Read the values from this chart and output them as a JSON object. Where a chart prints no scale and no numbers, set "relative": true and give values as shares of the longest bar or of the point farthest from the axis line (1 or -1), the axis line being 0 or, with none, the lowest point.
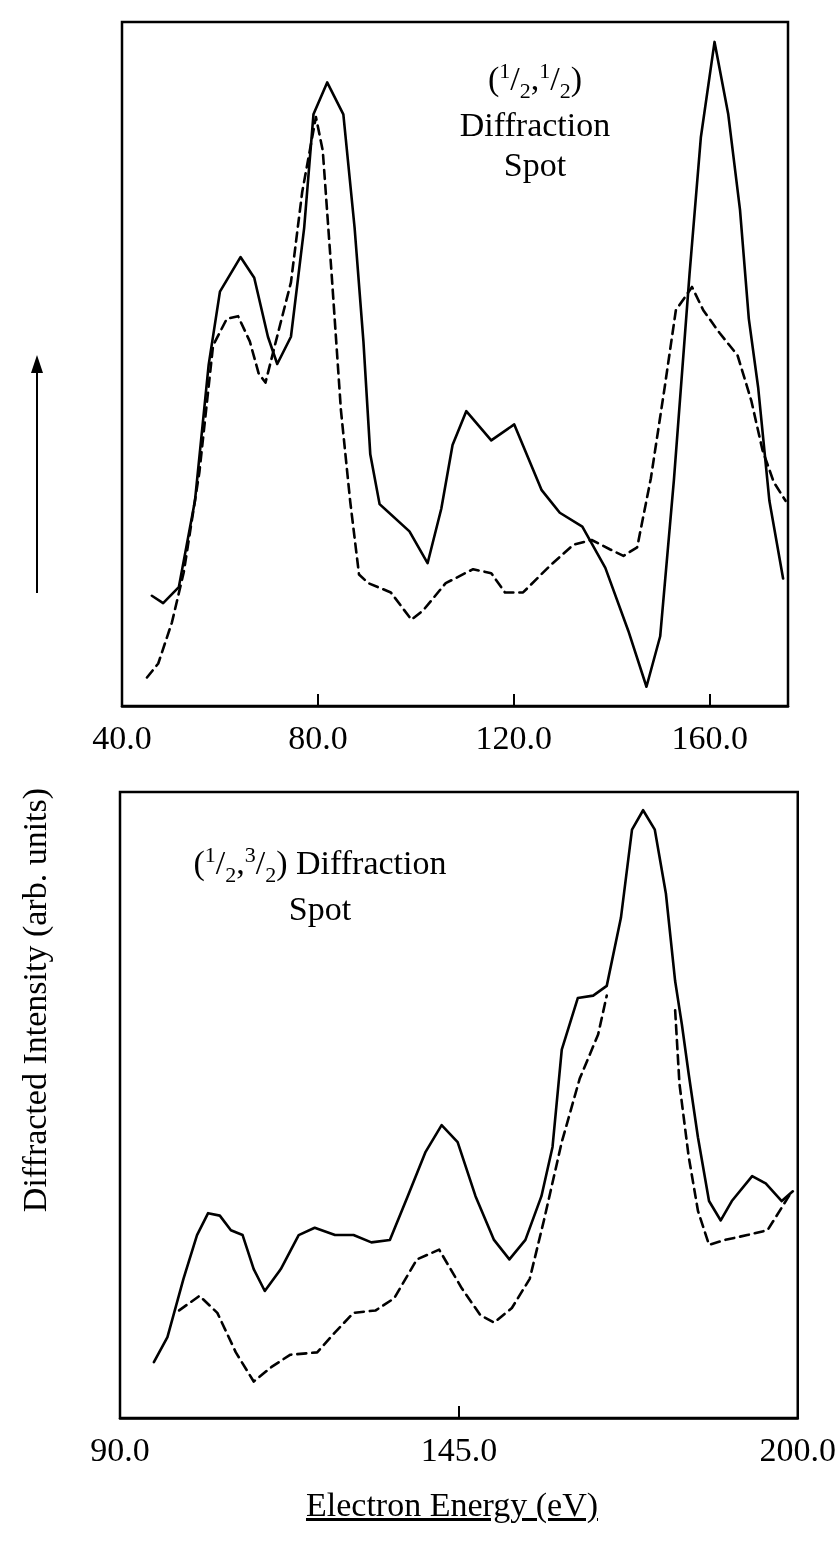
{
  "chart_data": [
    {
      "type": "line",
      "relative": true,
      "ylabel": "Diffracted Intensity (arb. units)",
      "annotations": [
        "($^{1}$/$_{2}$,$^{1}$/$_{2}$)\nDiffraction\nSpot"
      ],
      "xlim": [
        40,
        176
      ],
      "xticks": [
        {
          "value": 40,
          "label": "40.0"
        },
        {
          "value": 80,
          "label": "80.0"
        },
        {
          "value": 120,
          "label": "120.0"
        },
        {
          "value": 160,
          "label": "160.0"
        }
      ],
      "grid": false,
      "marker": "none",
      "series": [
        {
          "color": "#000000",
          "line_style": "solid",
          "x": [
            46.1,
            48.4,
            51.6,
            54.9,
            57.7,
            60.0,
            64.2,
            67.0,
            69.8,
            71.7,
            74.5,
            77.2,
            79.1,
            81.9,
            85.2,
            87.5,
            89.3,
            90.7,
            92.6,
            98.7,
            102.4,
            105.2,
            107.5,
            110.3,
            115.4,
            120.1,
            125.7,
            129.4,
            134.0,
            138.7,
            143.4,
            147.1,
            149.9,
            152.7,
            155.9,
            158.2,
            161.0,
            163.8,
            166.2,
            168.0,
            169.9,
            172.2,
            175.0
          ],
          "values": [
            0.166,
            0.155,
            0.179,
            0.309,
            0.514,
            0.624,
            0.676,
            0.645,
            0.556,
            0.515,
            0.556,
            0.72,
            0.891,
            0.939,
            0.891,
            0.72,
            0.549,
            0.379,
            0.304,
            0.263,
            0.215,
            0.297,
            0.393,
            0.444,
            0.4,
            0.424,
            0.325,
            0.291,
            0.27,
            0.208,
            0.113,
            0.029,
            0.105,
            0.34,
            0.651,
            0.856,
            1,
            0.891,
            0.747,
            0.583,
            0.48,
            0.309,
            0.192
          ]
        },
        {
          "color": "#000000",
          "line_style": "dashed",
          "x": [
            45.1,
            47.4,
            50.2,
            52.6,
            55.8,
            58.6,
            61.4,
            63.7,
            66.1,
            67.9,
            69.3,
            71.7,
            74.5,
            76.8,
            79.6,
            81.0,
            82.8,
            84.7,
            86.6,
            88.4,
            90.3,
            94.9,
            99.1,
            101.5,
            106.1,
            111.7,
            115.4,
            118.2,
            121.9,
            127.5,
            132.2,
            135.9,
            139.6,
            142.4,
            145.2,
            148.0,
            150.8,
            153.1,
            156.4,
            158.7,
            162.0,
            165.7,
            168.5,
            170.8,
            173.1,
            175.5
          ],
          "values": [
            0.043,
            0.064,
            0.126,
            0.201,
            0.352,
            0.543,
            0.583,
            0.587,
            0.549,
            0.501,
            0.487,
            0.557,
            0.638,
            0.774,
            0.887,
            0.836,
            0.651,
            0.446,
            0.308,
            0.198,
            0.185,
            0.171,
            0.13,
            0.144,
            0.185,
            0.206,
            0.2,
            0.171,
            0.171,
            0.212,
            0.243,
            0.25,
            0.236,
            0.226,
            0.239,
            0.343,
            0.479,
            0.596,
            0.631,
            0.596,
            0.562,
            0.528,
            0.46,
            0.385,
            0.337,
            0.309
          ]
        }
      ]
    },
    {
      "type": "line",
      "relative": true,
      "xlabel": "Electron Energy (eV)",
      "annotations": [
        "($^{1}$/$_{2}$,$^{3}$/$_{2}$) Diffraction\nSpot"
      ],
      "xlim": [
        90,
        200
      ],
      "xticks": [
        {
          "value": 90,
          "label": "90.0"
        },
        {
          "value": 145,
          "label": "145.0"
        },
        {
          "value": 200,
          "label": "200.0"
        }
      ],
      "grid": false,
      "marker": "none",
      "series": [
        {
          "color": "#000000",
          "line_style": "solid",
          "x": [
            95.5,
            97.7,
            100.3,
            102.5,
            104.3,
            106.2,
            108.0,
            109.9,
            111.7,
            113.5,
            116.1,
            119.0,
            121.6,
            124.9,
            127.9,
            130.8,
            133.8,
            136.7,
            139.6,
            142.2,
            144.8,
            147.7,
            150.7,
            153.2,
            155.8,
            158.4,
            160.2,
            161.7,
            164.3,
            166.8,
            169.0,
            171.3,
            173.1,
            174.9,
            176.8,
            178.6,
            180.1,
            181.2,
            182.3,
            183.8,
            185.6,
            187.5,
            189.3,
            192.6,
            194.8,
            197.4,
            199.2
          ],
          "values": [
            0.092,
            0.133,
            0.229,
            0.301,
            0.337,
            0.333,
            0.309,
            0.301,
            0.245,
            0.209,
            0.245,
            0.301,
            0.313,
            0.301,
            0.301,
            0.289,
            0.293,
            0.365,
            0.438,
            0.482,
            0.454,
            0.365,
            0.293,
            0.261,
            0.293,
            0.365,
            0.446,
            0.606,
            0.691,
            0.695,
            0.711,
            0.823,
            0.968,
            1,
            0.968,
            0.863,
            0.719,
            0.647,
            0.566,
            0.462,
            0.357,
            0.325,
            0.357,
            0.398,
            0.386,
            0.357,
            0.373
          ]
        },
        {
          "color": "#000000",
          "line_style": "dashed",
          "x": [
            99.6,
            102.9,
            105.8,
            108.8,
            111.7,
            114.6,
            117.6,
            122.0,
            124.9,
            127.9,
            131.5,
            134.5,
            138.2,
            141.8,
            145.5,
            148.5,
            150.7,
            153.6,
            156.5,
            158.8,
            161.7,
            164.6,
            167.6,
            169.0,
            174.9,
            180.1,
            180.8,
            182.3,
            183.8,
            185.6,
            188.2,
            191.8,
            195.1,
            198.8
          ],
          "values": [
            0.177,
            0.201,
            0.173,
            0.108,
            0.06,
            0.084,
            0.104,
            0.108,
            0.141,
            0.173,
            0.177,
            0.197,
            0.261,
            0.277,
            0.213,
            0.169,
            0.157,
            0.181,
            0.229,
            0.325,
            0.454,
            0.558,
            0.631,
            0.695,
            null,
            0.671,
            0.55,
            0.43,
            0.341,
            0.285,
            0.293,
            0.301,
            0.309,
            0.369
          ]
        }
      ]
    }
  ]
}
